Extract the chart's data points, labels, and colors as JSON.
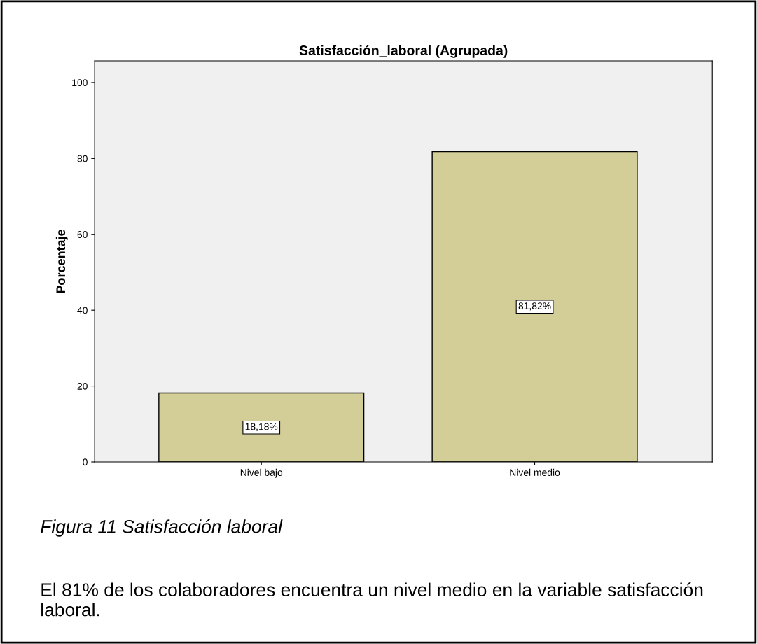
{
  "chart_data": {
    "type": "bar",
    "title": "Satisfacción_laboral (Agrupada)",
    "ylabel": "Porcentaje",
    "categories": [
      "Nivel bajo",
      "Nivel medio"
    ],
    "values": [
      18.18,
      81.82
    ],
    "value_labels": [
      "18,18%",
      "81,82%"
    ],
    "color": "#d3ce97",
    "ylim": [
      0,
      105.7
    ],
    "yticks": [
      0,
      20,
      40,
      60,
      80,
      100
    ],
    "grid": false,
    "annotations": [
      "Figura 11 Satisfacción laboral",
      "El 81% de los colaboradores encuentra un nivel medio en la variable satisfacción laboral."
    ]
  }
}
